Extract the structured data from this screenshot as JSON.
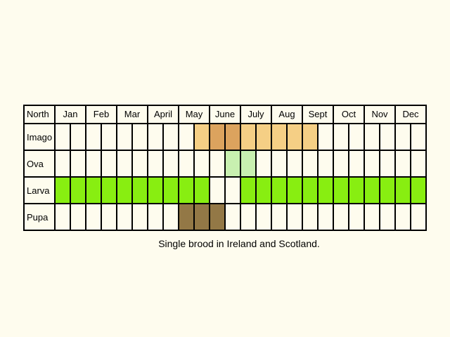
{
  "header": {
    "label": "North",
    "label_color": "#1a5fbf"
  },
  "months": [
    "Jan",
    "Feb",
    "Mar",
    "April",
    "May",
    "June",
    "July",
    "Aug",
    "Sept",
    "Oct",
    "Nov",
    "Dec"
  ],
  "stages": [
    {
      "name": "Imago",
      "periods": [
        {
          "start": "May",
          "start_week": 1,
          "end": "Aug",
          "end_week": 2,
          "color": "#f5cf85"
        },
        {
          "start": "June",
          "start_week": 0,
          "end": "June",
          "end_week": 1,
          "color": "#dca35e"
        }
      ]
    },
    {
      "name": "Ova",
      "periods": [
        {
          "start": "June",
          "start_week": 1,
          "end": "July",
          "end_week": 0,
          "color": "#c8f0b0"
        }
      ]
    },
    {
      "name": "Larva",
      "periods": [
        {
          "start": "Jan",
          "start_week": 0,
          "end": "May",
          "end_week": 1,
          "color": "#88ee11"
        },
        {
          "start": "July",
          "start_week": 0,
          "end": "Dec",
          "end_week": 1,
          "color": "#88ee11"
        }
      ]
    },
    {
      "name": "Pupa",
      "periods": [
        {
          "start": "May",
          "start_week": 0,
          "end": "June",
          "end_week": 0,
          "color": "#937846"
        }
      ]
    }
  ],
  "caption": "Single brood in Ireland and Scotland."
}
